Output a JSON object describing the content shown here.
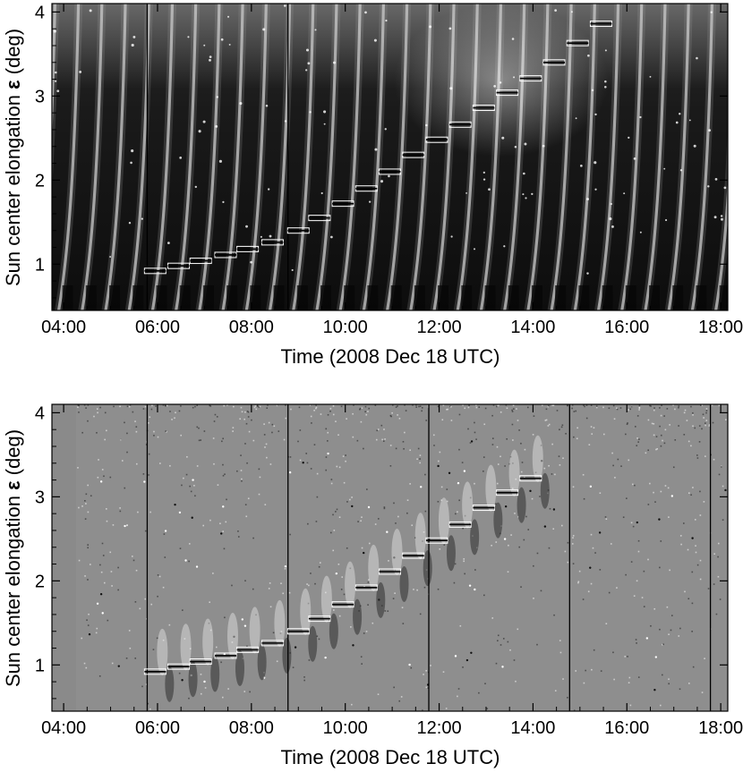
{
  "chart_data": [
    {
      "type": "heatmap",
      "panel": "top",
      "title": "",
      "xlabel": "Time (2008 Dec 18 UTC)",
      "ylabel_text": "Sun center elongation ",
      "ylabel_symbol": "ε",
      "ylabel_unit": " (deg)",
      "x_ticks": [
        "04:00",
        "06:00",
        "08:00",
        "10:00",
        "12:00",
        "14:00",
        "16:00",
        "18:00"
      ],
      "y_ticks": [
        "1",
        "2",
        "3",
        "4"
      ],
      "xlim_hours": [
        3.75,
        18.15
      ],
      "ylim_deg": [
        0.45,
        4.1
      ],
      "colormap": "grayscale",
      "gap_lines_hours": [
        5.78,
        8.78
      ],
      "markers": [
        {
          "t": 5.95,
          "e": 0.92
        },
        {
          "t": 6.45,
          "e": 0.98
        },
        {
          "t": 6.92,
          "e": 1.04
        },
        {
          "t": 7.45,
          "e": 1.11
        },
        {
          "t": 7.92,
          "e": 1.18
        },
        {
          "t": 8.45,
          "e": 1.26
        },
        {
          "t": 9.0,
          "e": 1.4
        },
        {
          "t": 9.45,
          "e": 1.55
        },
        {
          "t": 9.95,
          "e": 1.72
        },
        {
          "t": 10.45,
          "e": 1.9
        },
        {
          "t": 10.95,
          "e": 2.1
        },
        {
          "t": 11.45,
          "e": 2.3
        },
        {
          "t": 11.95,
          "e": 2.48
        },
        {
          "t": 12.45,
          "e": 2.66
        },
        {
          "t": 12.95,
          "e": 2.86
        },
        {
          "t": 13.45,
          "e": 3.04
        },
        {
          "t": 13.95,
          "e": 3.21
        },
        {
          "t": 14.45,
          "e": 3.4
        },
        {
          "t": 14.95,
          "e": 3.63
        },
        {
          "t": 15.45,
          "e": 3.86
        }
      ]
    },
    {
      "type": "heatmap",
      "panel": "bottom",
      "title": "",
      "xlabel": "Time (2008 Dec 18 UTC)",
      "ylabel_text": "Sun center elongation ",
      "ylabel_symbol": "ε",
      "ylabel_unit": " (deg)",
      "x_ticks": [
        "04:00",
        "06:00",
        "08:00",
        "10:00",
        "12:00",
        "14:00",
        "16:00",
        "18:00"
      ],
      "y_ticks": [
        "1",
        "2",
        "3",
        "4"
      ],
      "xlim_hours": [
        3.75,
        18.15
      ],
      "ylim_deg": [
        0.45,
        4.1
      ],
      "colormap": "grayscale (running difference)",
      "gap_lines_hours": [
        5.78,
        8.78,
        11.78,
        14.78,
        17.78
      ],
      "markers": [
        {
          "t": 5.95,
          "e": 0.92
        },
        {
          "t": 6.45,
          "e": 0.98
        },
        {
          "t": 6.92,
          "e": 1.04
        },
        {
          "t": 7.45,
          "e": 1.11
        },
        {
          "t": 7.92,
          "e": 1.18
        },
        {
          "t": 8.45,
          "e": 1.26
        },
        {
          "t": 9.0,
          "e": 1.4
        },
        {
          "t": 9.45,
          "e": 1.55
        },
        {
          "t": 9.95,
          "e": 1.72
        },
        {
          "t": 10.45,
          "e": 1.92
        },
        {
          "t": 10.95,
          "e": 2.11
        },
        {
          "t": 11.45,
          "e": 2.3
        },
        {
          "t": 11.95,
          "e": 2.48
        },
        {
          "t": 12.45,
          "e": 2.67
        },
        {
          "t": 12.95,
          "e": 2.87
        },
        {
          "t": 13.45,
          "e": 3.05
        },
        {
          "t": 13.95,
          "e": 3.22
        }
      ]
    }
  ]
}
